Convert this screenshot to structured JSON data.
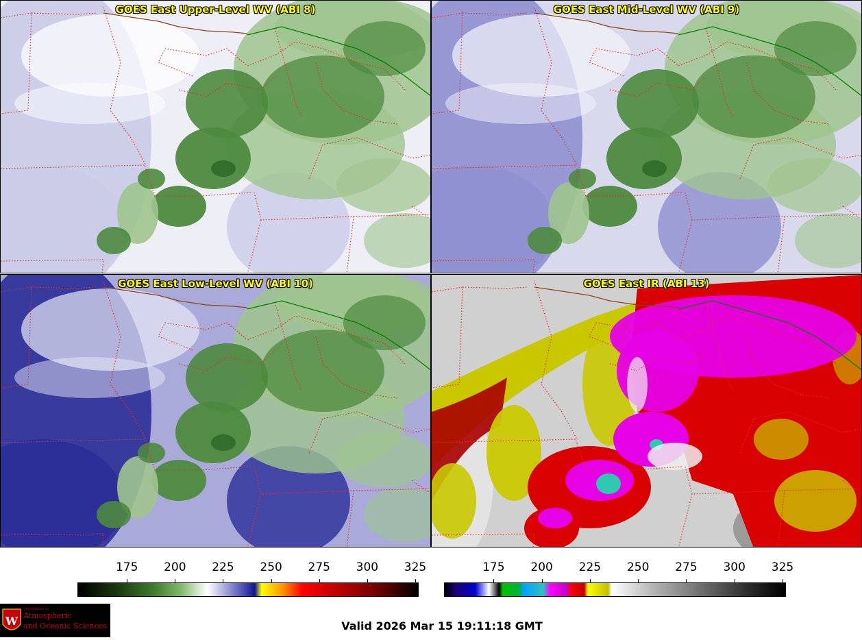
{
  "panels": [
    {
      "title": "GOES East Upper-Level WV (ABI 8)",
      "palette": "wv",
      "scheme": "upper"
    },
    {
      "title": "GOES East Mid-Level WV (ABI 9)",
      "palette": "wv",
      "scheme": "mid"
    },
    {
      "title": "GOES East Low-Level WV (ABI 10)",
      "palette": "wv",
      "scheme": "low"
    },
    {
      "title": "GOES East IR (ABI 13)",
      "palette": "ir",
      "scheme": "ir"
    }
  ],
  "colorbars": [
    {
      "name": "wv-colorbar",
      "ticks": [
        "175",
        "200",
        "225",
        "250",
        "275",
        "300",
        "325"
      ]
    },
    {
      "name": "ir-colorbar",
      "ticks": [
        "175",
        "200",
        "225",
        "250",
        "275",
        "300",
        "325"
      ]
    }
  ],
  "valid_time": "Valid 2026 Mar 15 19:11:18 GMT",
  "logo": {
    "line1": "Department of",
    "line2": "Atmospheric",
    "line3": "and Oceanic Sciences"
  },
  "colors": {
    "title": "#ffff00",
    "state_border": "#e8301c",
    "country_border": "#008000",
    "coast": "#8b4513"
  }
}
